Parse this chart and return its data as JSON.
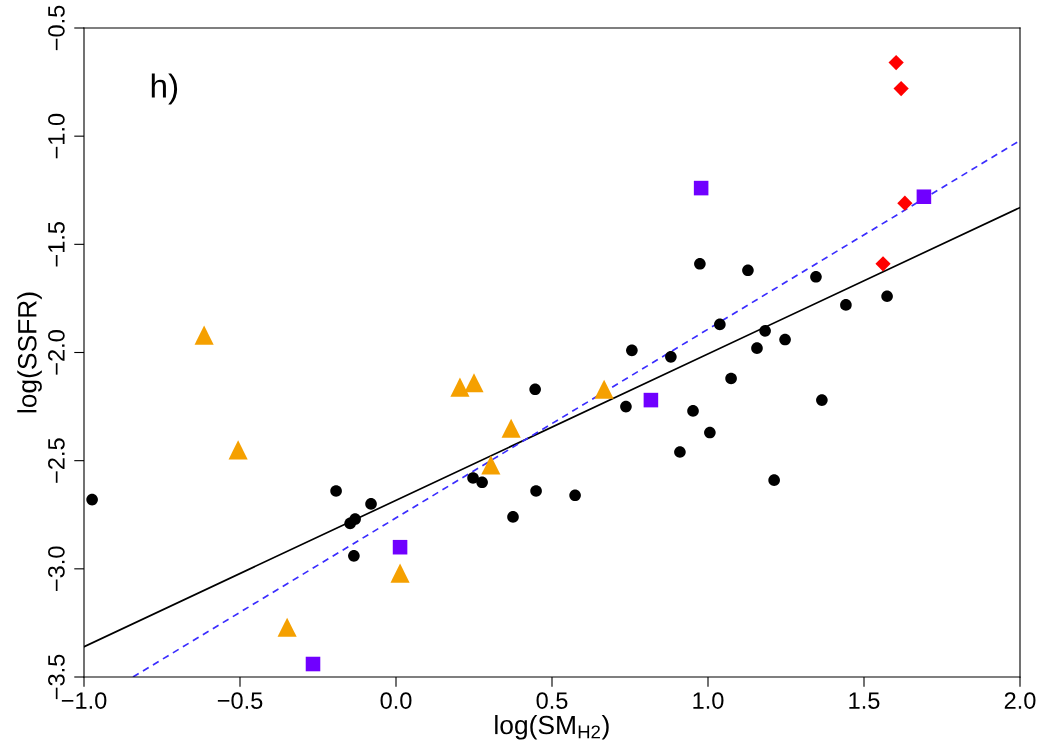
{
  "chart_data": {
    "type": "scatter",
    "xlabel": "log(SM$_{H2}$)",
    "ylabel": "log(SSFR)",
    "annotations": [
      "h)"
    ],
    "xlim": [
      -1.0,
      2.0
    ],
    "ylim": [
      -3.5,
      -0.5
    ],
    "xticks": [
      {
        "value": -1.0,
        "label": "−1.0"
      },
      {
        "value": -0.5,
        "label": "−0.5"
      },
      {
        "value": 0.0,
        "label": "0.0"
      },
      {
        "value": 0.5,
        "label": "0.5"
      },
      {
        "value": 1.0,
        "label": "1.0"
      },
      {
        "value": 1.5,
        "label": "1.5"
      },
      {
        "value": 2.0,
        "label": "2.0"
      }
    ],
    "yticks": [
      {
        "value": -3.5,
        "label": "−3.5"
      },
      {
        "value": -3.0,
        "label": "−3.0"
      },
      {
        "value": -2.5,
        "label": "−2.5"
      },
      {
        "value": -2.0,
        "label": "−2.0"
      },
      {
        "value": -1.5,
        "label": "−1.5"
      },
      {
        "value": -1.0,
        "label": "−1.0"
      },
      {
        "value": -0.5,
        "label": "−0.5"
      }
    ],
    "grid": false,
    "series": [
      {
        "marker": "circle",
        "color": "#000000",
        "x": [
          -0.974,
          -0.192,
          -0.147,
          -0.131,
          -0.135,
          -0.08,
          0.247,
          0.276,
          0.446,
          0.449,
          0.375,
          0.574,
          0.737,
          0.756,
          0.881,
          0.952,
          0.974,
          0.91,
          1.006,
          1.038,
          1.074,
          1.128,
          1.157,
          1.183,
          1.247,
          1.212,
          1.346,
          1.365,
          1.442,
          1.574
        ],
        "values": [
          -2.68,
          -2.64,
          -2.79,
          -2.77,
          -2.94,
          -2.7,
          -2.58,
          -2.6,
          -2.17,
          -2.64,
          -2.76,
          -2.66,
          -2.25,
          -1.99,
          -2.02,
          -2.27,
          -1.59,
          -2.46,
          -2.37,
          -1.87,
          -2.12,
          -1.62,
          -1.98,
          -1.9,
          -1.94,
          -2.59,
          -1.65,
          -2.22,
          -1.78,
          -1.74
        ]
      },
      {
        "marker": "triangle",
        "color": "#f5a000",
        "x": [
          -0.615,
          -0.506,
          0.205,
          0.25,
          0.369,
          0.304,
          0.667,
          0.013,
          -0.349
        ],
        "values": [
          -1.92,
          -2.45,
          -2.16,
          -2.14,
          -2.35,
          -2.52,
          -2.17,
          -3.02,
          -3.27
        ]
      },
      {
        "marker": "square",
        "color": "#7000ff",
        "x": [
          0.978,
          0.817,
          0.013,
          -0.266,
          1.692
        ],
        "values": [
          -1.24,
          -2.22,
          -2.9,
          -3.44,
          -1.28
        ]
      },
      {
        "marker": "diamond",
        "color": "#ff0000",
        "x": [
          1.603,
          1.619,
          1.631,
          1.561
        ],
        "values": [
          -0.66,
          -0.78,
          -1.31,
          -1.59
        ]
      },
      {
        "type": "line",
        "line_style": "solid",
        "color": "#000000",
        "x": [
          -1.0,
          2.0
        ],
        "values": [
          -3.36,
          -1.33
        ]
      },
      {
        "type": "line",
        "line_style": "dashed",
        "color": "#3a2cff",
        "x": [
          -0.843,
          2.0
        ],
        "values": [
          -3.5,
          -1.02
        ]
      }
    ]
  }
}
